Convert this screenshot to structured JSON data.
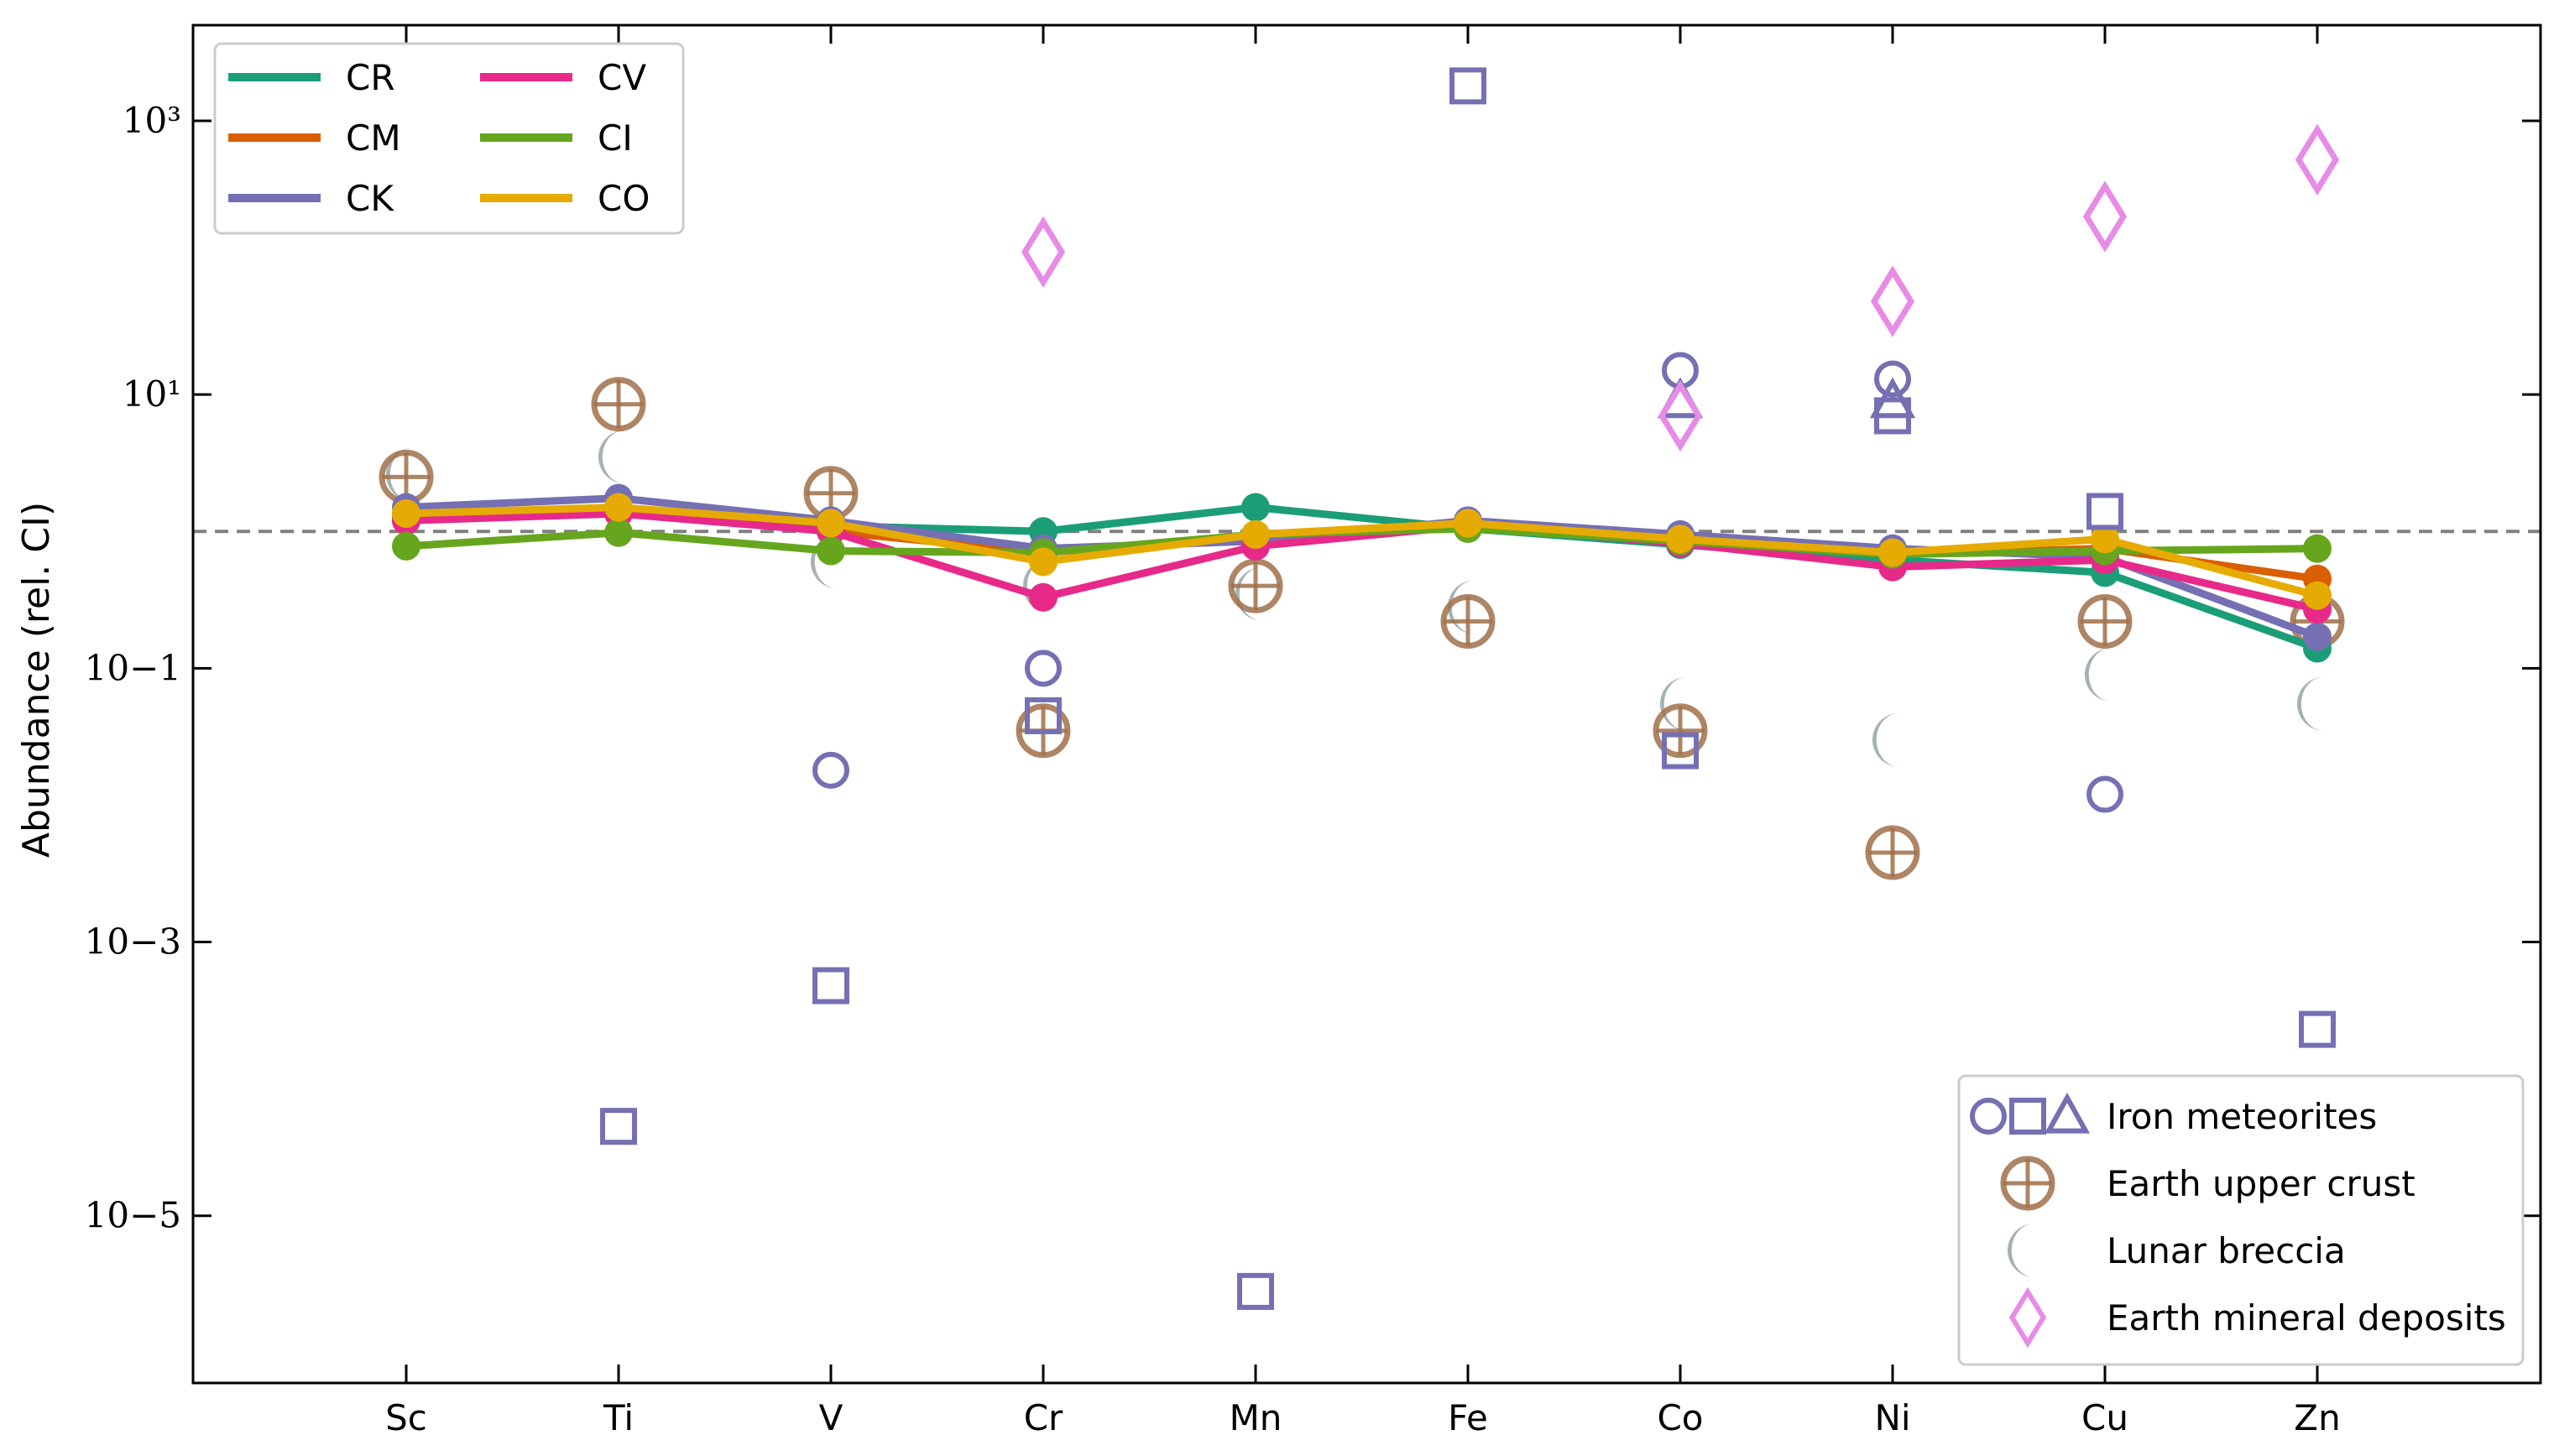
{
  "chart_data": {
    "type": "line",
    "ylabel": "Abundance (rel. CI)",
    "xlabel": "",
    "yscale": "log",
    "ylim": [
      6e-07,
      5000
    ],
    "categories": [
      "Sc",
      "Ti",
      "V",
      "Cr",
      "Mn",
      "Fe",
      "Co",
      "Ni",
      "Cu",
      "Zn"
    ],
    "ytick_labels": [
      "10−5",
      "10−3",
      "10−1",
      "10¹",
      "10³"
    ],
    "ytick_values": [
      1e-05,
      0.001,
      0.1,
      10,
      1000
    ],
    "reference_line": {
      "y": 1,
      "style": "dashed"
    },
    "series": [
      {
        "name": "CR",
        "color": "#1b9e77",
        "values": [
          1.3,
          1.5,
          1.1,
          1.0,
          1.5,
          1.05,
          0.8,
          0.62,
          0.5,
          0.14
        ]
      },
      {
        "name": "CM",
        "color": "#d95f02",
        "values": [
          1.2,
          1.4,
          1.0,
          0.7,
          0.9,
          1.1,
          0.85,
          0.68,
          0.75,
          0.45
        ]
      },
      {
        "name": "CK",
        "color": "#7570b3",
        "values": [
          1.5,
          1.75,
          1.2,
          0.75,
          0.85,
          1.2,
          0.95,
          0.75,
          0.65,
          0.17
        ]
      },
      {
        "name": "CV",
        "color": "#e7298a",
        "values": [
          1.2,
          1.35,
          1.0,
          0.33,
          0.78,
          1.1,
          0.82,
          0.55,
          0.62,
          0.27
        ]
      },
      {
        "name": "CI",
        "color": "#66a61e",
        "values": [
          0.78,
          0.98,
          0.72,
          0.7,
          0.95,
          1.05,
          0.85,
          0.68,
          0.72,
          0.75
        ]
      },
      {
        "name": "CO",
        "color": "#e6ab02",
        "values": [
          1.35,
          1.5,
          1.15,
          0.6,
          0.95,
          1.15,
          0.88,
          0.7,
          0.88,
          0.34
        ]
      }
    ],
    "legend_series": {
      "placement": "top-left",
      "columns": 2
    },
    "scatter": [
      {
        "name": "Iron meteorites",
        "color": "#7570b3",
        "points": [
          {
            "category": "Ti",
            "marker": "square",
            "value": 4.5e-05
          },
          {
            "category": "V",
            "marker": "circle",
            "value": 0.018
          },
          {
            "category": "V",
            "marker": "square",
            "value": 0.00048
          },
          {
            "category": "Cr",
            "marker": "circle",
            "value": 0.1
          },
          {
            "category": "Cr",
            "marker": "square",
            "value": 0.045
          },
          {
            "category": "Mn",
            "marker": "square",
            "value": 2.8e-06
          },
          {
            "category": "Fe",
            "marker": "square",
            "value": 1800
          },
          {
            "category": "Co",
            "marker": "circle",
            "value": 15
          },
          {
            "category": "Co",
            "marker": "triangle",
            "value": 9
          },
          {
            "category": "Co",
            "marker": "square",
            "value": 0.025
          },
          {
            "category": "Ni",
            "marker": "circle",
            "value": 13
          },
          {
            "category": "Ni",
            "marker": "triangle",
            "value": 9
          },
          {
            "category": "Ni",
            "marker": "square",
            "value": 7
          },
          {
            "category": "Cu",
            "marker": "circle",
            "value": 0.012
          },
          {
            "category": "Cu",
            "marker": "square",
            "value": 1.4
          },
          {
            "category": "Zn",
            "marker": "square",
            "value": 0.00023
          }
        ]
      },
      {
        "name": "Earth upper crust",
        "color": "#a0704a",
        "marker": "circle-plus",
        "values": {
          "Sc": 2.5,
          "Ti": 8.5,
          "V": 1.9,
          "Cr": 0.035,
          "Mn": 0.4,
          "Fe": 0.22,
          "Co": 0.035,
          "Ni": 0.0045,
          "Cu": 0.22,
          "Zn": 0.22
        }
      },
      {
        "name": "Lunar breccia",
        "color": "#95a5a6",
        "marker": "crescent",
        "values": {
          "Sc": 2.6,
          "Ti": 3.5,
          "V": 0.6,
          "Cr": 0.4,
          "Mn": 0.35,
          "Fe": 0.28,
          "Co": 0.055,
          "Ni": 0.03,
          "Cu": 0.09,
          "Zn": 0.055
        }
      },
      {
        "name": "Earth mineral deposits",
        "color": "#e78be7",
        "marker": "diamond",
        "values": {
          "Cr": 110,
          "Co": 7,
          "Ni": 48,
          "Cu": 200,
          "Zn": 520
        }
      }
    ],
    "legend_markers": {
      "placement": "bottom-right"
    }
  }
}
